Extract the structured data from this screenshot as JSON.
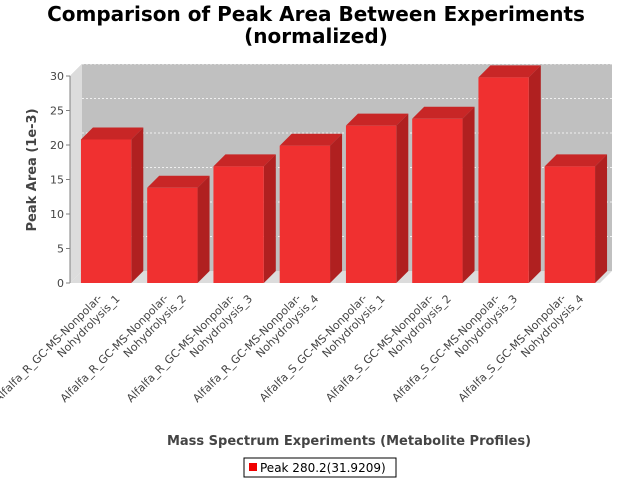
{
  "chart_data": {
    "type": "bar",
    "title_lines": [
      "Comparison of Peak Area Between Experiments",
      "(normalized)"
    ],
    "xlabel": "Mass Spectrum Experiments (Metabolite Profiles)",
    "ylabel": "Peak Area (1e-3)",
    "ylim": [
      0,
      30
    ],
    "yticks": [
      "0",
      "5",
      "10",
      "15",
      "20",
      "25",
      "30"
    ],
    "categories": [
      [
        "Alfalfa_R_GC-MS-Nonpolar-",
        "Nohydrolysis_1"
      ],
      [
        "Alfalfa_R_GC-MS-Nonpolar-",
        "Nohydrolysis_2"
      ],
      [
        "Alfalfa_R_GC-MS-Nonpolar-",
        "Nohydrolysis_3"
      ],
      [
        "Alfalfa_R_GC-MS-Nonpolar-",
        "Nohydrolysis_4"
      ],
      [
        "Alfalfa_S_GC-MS-Nonpolar-",
        "Nohydrolysis_1"
      ],
      [
        "Alfalfa_S_GC-MS-Nonpolar-",
        "Nohydrolysis_2"
      ],
      [
        "Alfalfa_S_GC-MS-Nonpolar-",
        "Nohydrolysis_3"
      ],
      [
        "Alfalfa_S_GC-MS-Nonpolar-",
        "Nohydrolysis_4"
      ]
    ],
    "series": [
      {
        "name": "Peak 280.2(31.9209)",
        "values": [
          20.8,
          13.8,
          16.9,
          19.9,
          22.8,
          23.8,
          29.8,
          16.9
        ]
      }
    ],
    "grid": true,
    "legend_position": "bottom",
    "colors": {
      "bar_front": "#f03030",
      "bar_top": "#c82626",
      "bar_side": "#b02020",
      "plot_background": "#c0c0c0",
      "plot_wall": "#dcdcdc"
    }
  }
}
